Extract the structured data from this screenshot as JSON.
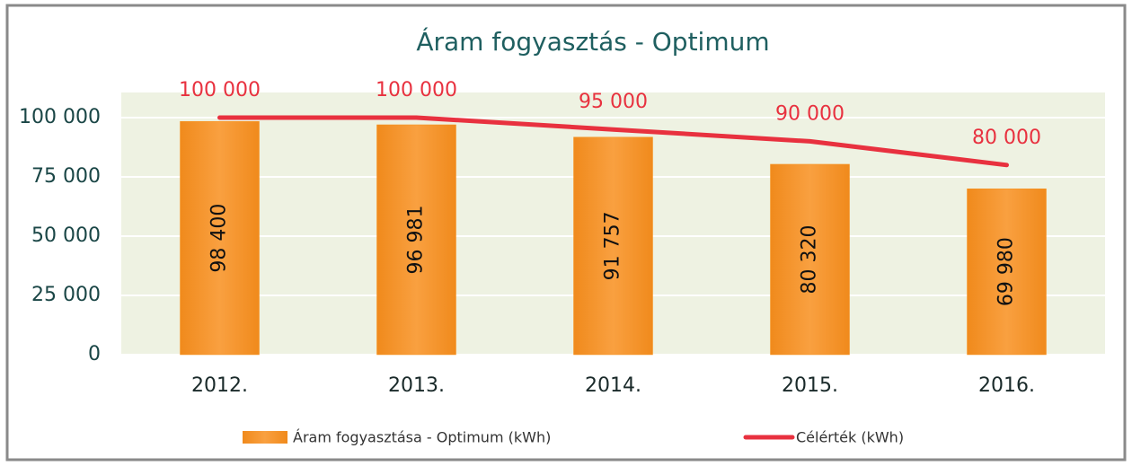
{
  "chart_data": {
    "type": "bar",
    "title": "Áram fogyasztás - Optimum",
    "categories": [
      "2012.",
      "2013.",
      "2014.",
      "2015.",
      "2016."
    ],
    "series": [
      {
        "name": "Áram fogyasztása - Optimum (kWh)",
        "color": "#f7931e",
        "type": "bar",
        "values": [
          98400,
          96981,
          91757,
          80320,
          69980
        ],
        "value_labels": [
          "98 400",
          "96 981",
          "91 757",
          "80 320",
          "69 980"
        ]
      },
      {
        "name": "Célérték (kWh)",
        "color": "#e8313f",
        "type": "line",
        "values": [
          100000,
          100000,
          95000,
          90000,
          80000
        ],
        "value_labels": [
          "100 000",
          "100 000",
          "95 000",
          "90 000",
          "80 000"
        ]
      }
    ],
    "ylim": [
      0,
      100000
    ],
    "yticks": [
      0,
      {
        "value": 25000,
        "label": "25 000"
      },
      {
        "value": 50000,
        "label": "50 000"
      },
      {
        "value": 75000,
        "label": "75 000"
      },
      {
        "value": 100000,
        "label": "100 000"
      }
    ],
    "grid": true,
    "legend": "bottom"
  }
}
